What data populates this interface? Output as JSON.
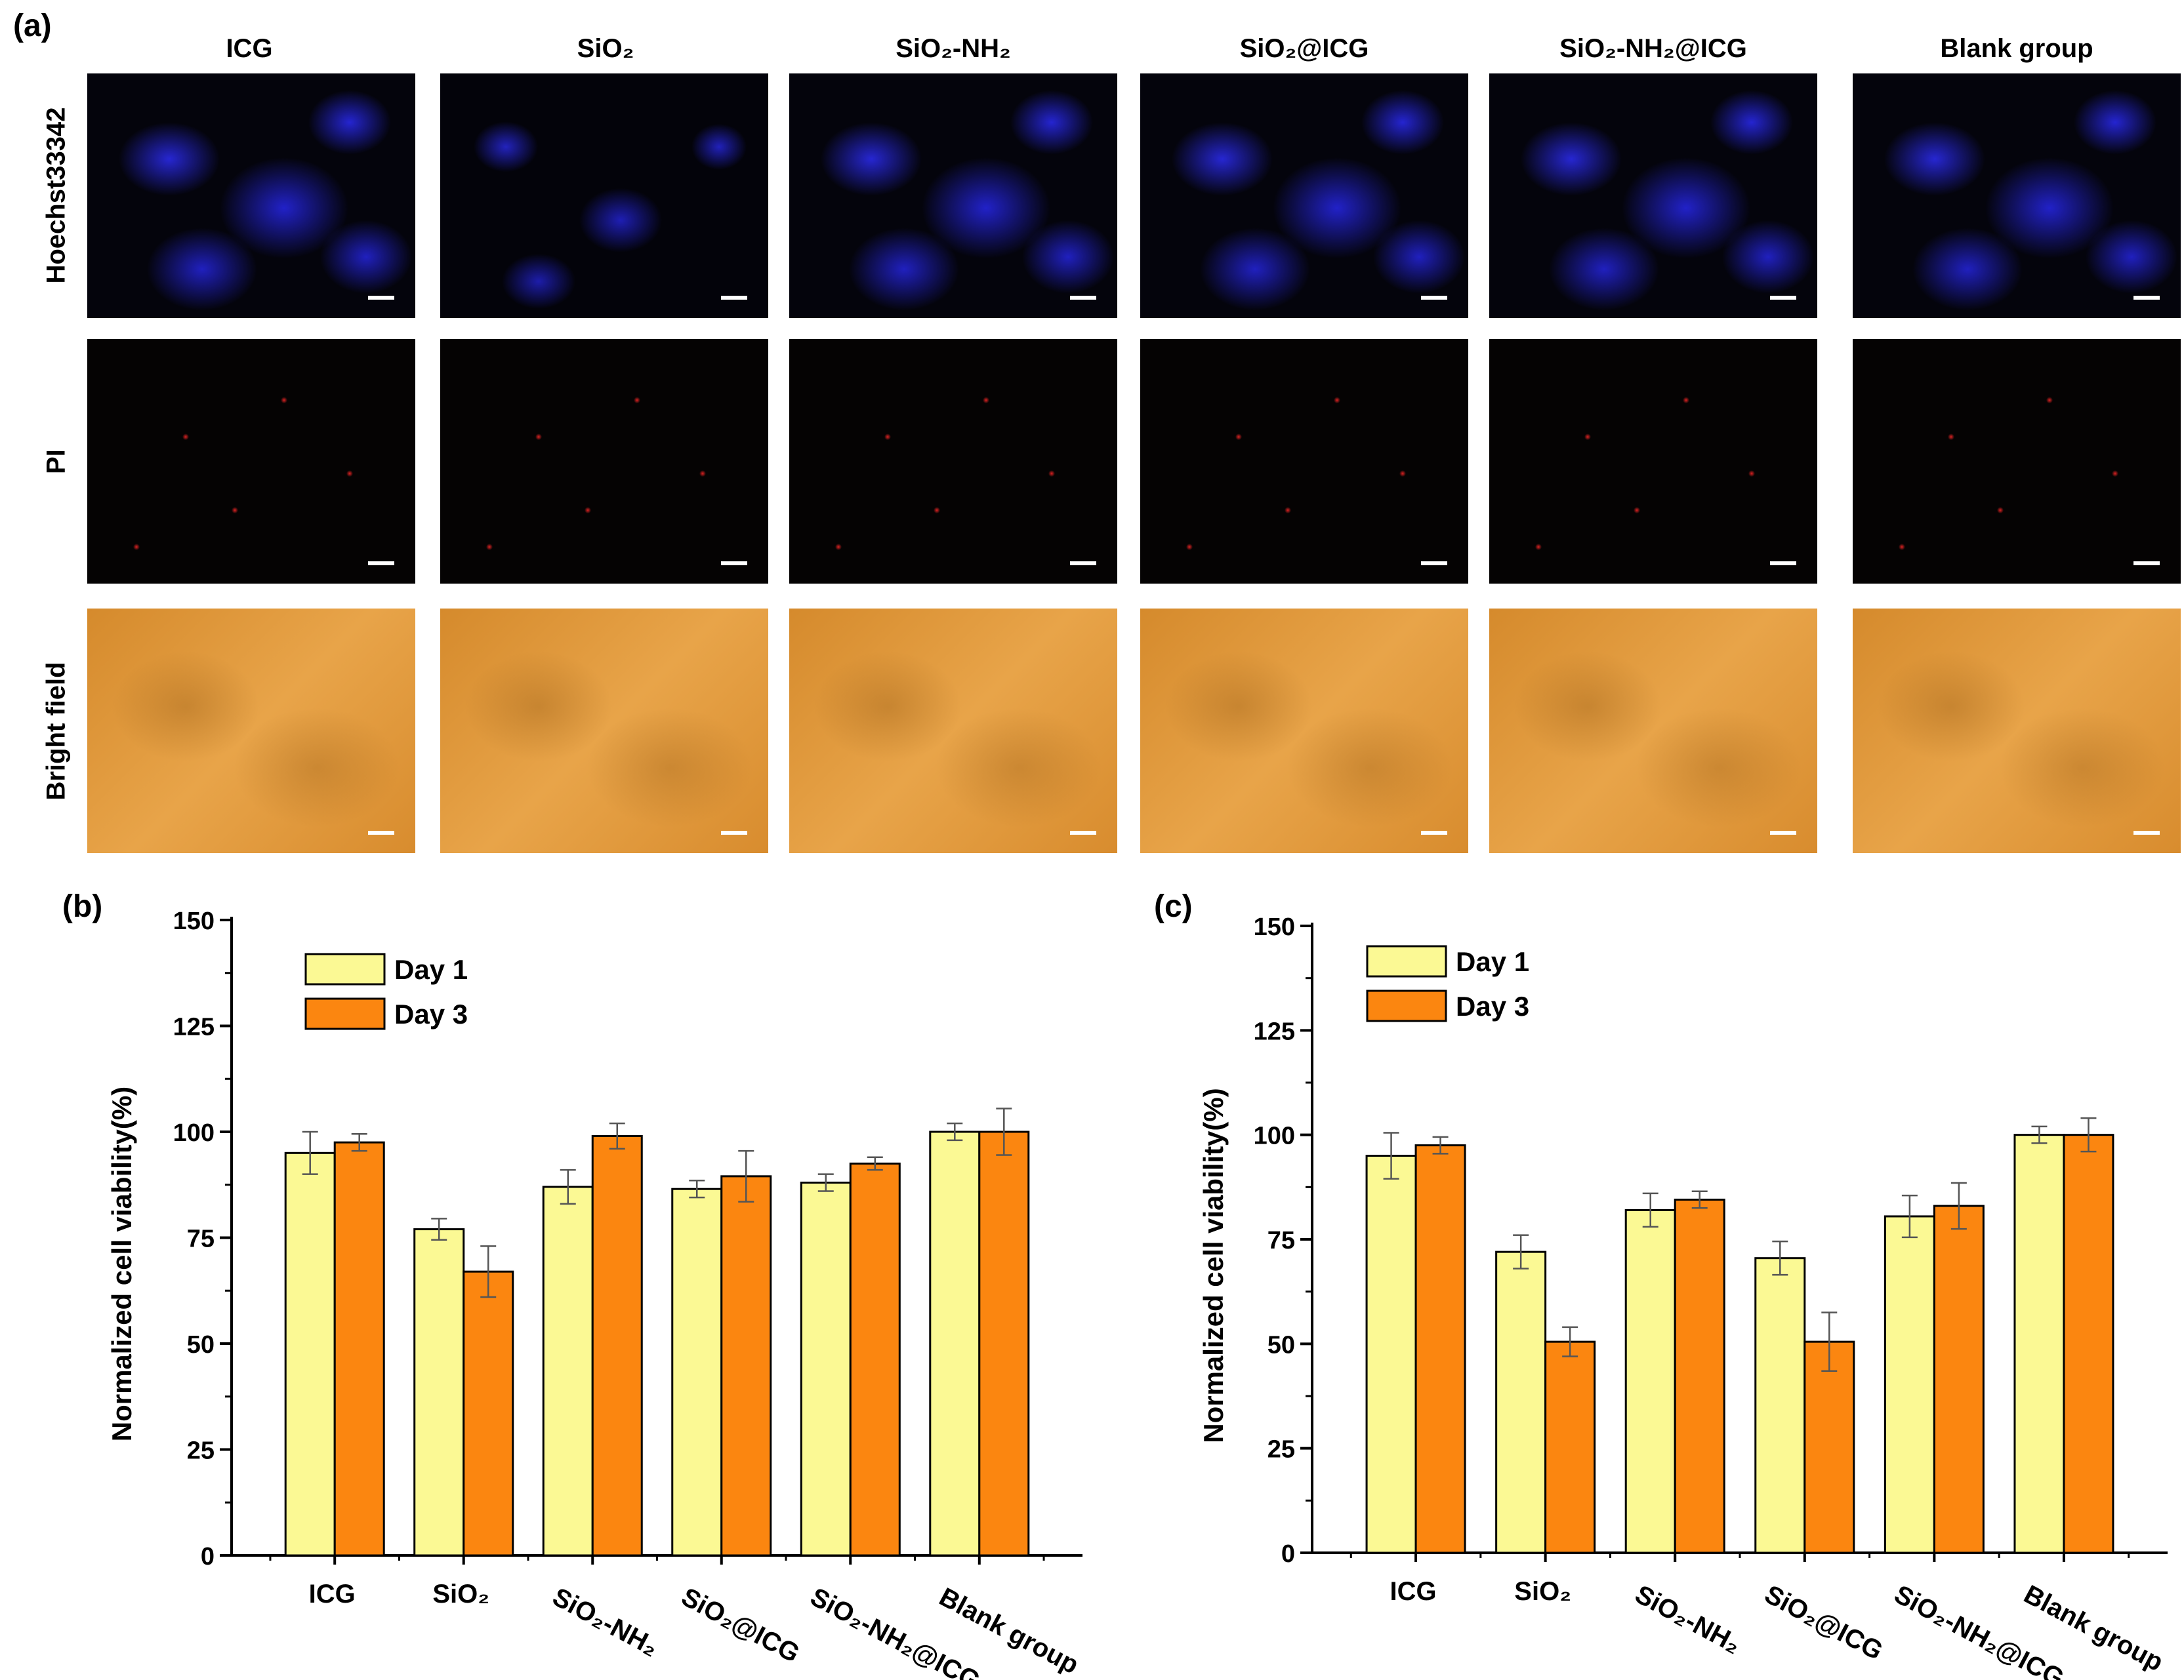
{
  "panels": {
    "a": "(a)",
    "b": "(b)",
    "c": "(c)"
  },
  "micrographs": {
    "columns": [
      "ICG",
      "SiO₂",
      "SiO₂-NH₂",
      "SiO₂@ICG",
      "SiO₂-NH₂@ICG",
      "Blank group"
    ],
    "rows": [
      "Hoechst33342",
      "PI",
      "Bright field"
    ]
  },
  "colors": {
    "day1": "#fbf994",
    "day3": "#fb8610",
    "error": "#555555"
  },
  "chart_data": [
    {
      "type": "bar",
      "title": "(b)",
      "categories": [
        "ICG",
        "SiO₂",
        "SiO₂-NH₂",
        "SiO₂@ICG",
        "SiO₂-NH₂@ICG",
        "Blank group"
      ],
      "series": [
        {
          "name": "Day 1",
          "values": [
            95,
            77,
            87,
            86.5,
            88,
            100
          ],
          "errors": [
            5,
            2.5,
            4,
            2,
            2,
            2
          ]
        },
        {
          "name": "Day 3",
          "values": [
            97.5,
            67,
            99,
            89.5,
            92.5,
            100
          ],
          "errors": [
            2,
            6,
            3,
            6,
            1.5,
            5.5
          ]
        }
      ],
      "xlabel": "",
      "ylabel": "Normalized cell viability(%)",
      "ylim": [
        0,
        150
      ],
      "yticks": [
        0,
        25,
        50,
        75,
        100,
        125,
        150
      ],
      "legend": "top-left"
    },
    {
      "type": "bar",
      "title": "(c)",
      "categories": [
        "ICG",
        "SiO₂",
        "SiO₂-NH₂",
        "SiO₂@ICG",
        "SiO₂-NH₂@ICG",
        "Blank group"
      ],
      "series": [
        {
          "name": "Day 1",
          "values": [
            95,
            72,
            82,
            70.5,
            80.5,
            100
          ],
          "errors": [
            5.5,
            4,
            4,
            4,
            5,
            2
          ]
        },
        {
          "name": "Day 3",
          "values": [
            97.5,
            50.5,
            84.5,
            50.5,
            83,
            100
          ],
          "errors": [
            2,
            3.5,
            2,
            7,
            5.5,
            4
          ]
        }
      ],
      "xlabel": "",
      "ylabel": "Normalized cell viability(%)",
      "ylim": [
        0,
        150
      ],
      "yticks": [
        0,
        25,
        50,
        75,
        100,
        125,
        150
      ],
      "legend": "top-left"
    }
  ]
}
